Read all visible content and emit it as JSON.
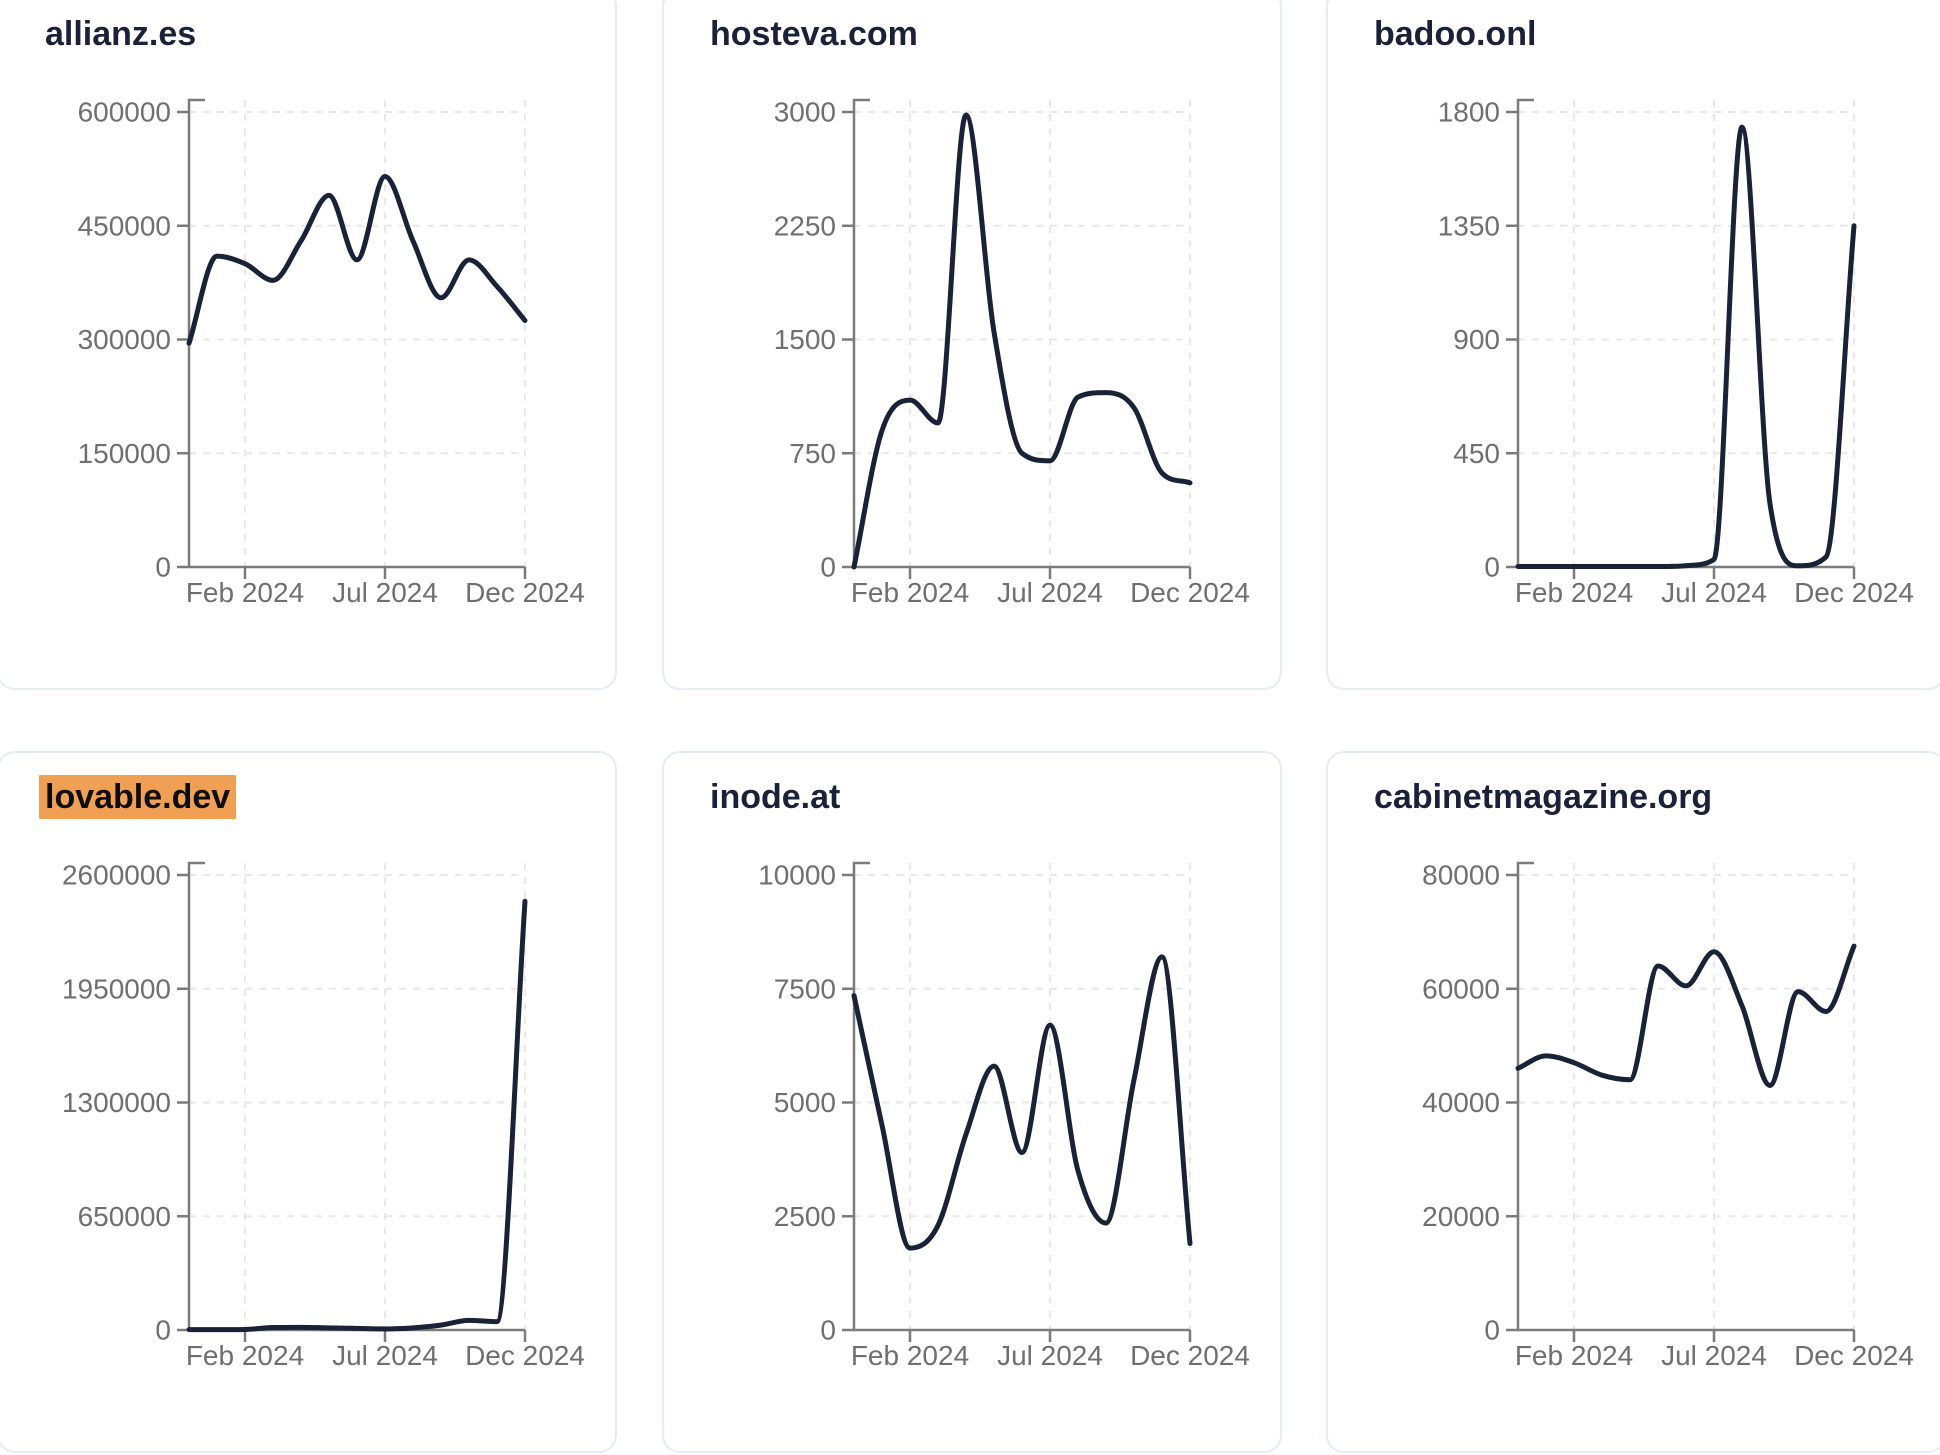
{
  "page": {
    "background": "#ffffff"
  },
  "styles": {
    "line_color": "#1a2238",
    "title_color": "#1a2139",
    "axis_color": "#7b7b7b",
    "tick_label_color": "#6f6f6f",
    "gridline_color": "#e8e8e8",
    "card_border_color": "#e7ebf3",
    "highlight_color": "#f0a055"
  },
  "x_tick_labels": [
    "Feb 2024",
    "Jul 2024",
    "Dec 2024"
  ],
  "chart_data": [
    {
      "type": "line",
      "title": "allianz.es",
      "title_highlighted": false,
      "x": [
        "Dec 2023",
        "Jan 2024",
        "Feb 2024",
        "Mar 2024",
        "Apr 2024",
        "May 2024",
        "Jun 2024",
        "Jul 2024",
        "Aug 2024",
        "Sep 2024",
        "Oct 2024",
        "Nov 2024",
        "Dec 2024"
      ],
      "x_tick_labels": [
        "Feb 2024",
        "Jul 2024",
        "Dec 2024"
      ],
      "values": [
        295000,
        410000,
        400000,
        378000,
        430000,
        490000,
        405000,
        515000,
        430000,
        355000,
        405000,
        370000,
        325000
      ],
      "ylim": [
        0,
        600000
      ],
      "y_ticks": [
        0,
        150000,
        300000,
        450000,
        600000
      ],
      "grid": true,
      "legend": "none"
    },
    {
      "type": "line",
      "title": "hosteva.com",
      "title_highlighted": false,
      "x": [
        "Dec 2023",
        "Jan 2024",
        "Feb 2024",
        "Mar 2024",
        "Apr 2024",
        "May 2024",
        "Jun 2024",
        "Jul 2024",
        "Aug 2024",
        "Sep 2024",
        "Oct 2024",
        "Nov 2024",
        "Dec 2024"
      ],
      "x_tick_labels": [
        "Feb 2024",
        "Jul 2024",
        "Dec 2024"
      ],
      "values": [
        0,
        900,
        1100,
        950,
        2980,
        1550,
        750,
        700,
        1120,
        1150,
        1050,
        620,
        555
      ],
      "ylim": [
        0,
        3000
      ],
      "y_ticks": [
        0,
        750,
        1500,
        2250,
        3000
      ],
      "grid": true,
      "legend": "none"
    },
    {
      "type": "line",
      "title": "badoo.onl",
      "title_highlighted": false,
      "x": [
        "Dec 2023",
        "Jan 2024",
        "Feb 2024",
        "Mar 2024",
        "Apr 2024",
        "May 2024",
        "Jun 2024",
        "Jul 2024",
        "Aug 2024",
        "Sep 2024",
        "Oct 2024",
        "Nov 2024",
        "Dec 2024"
      ],
      "x_tick_labels": [
        "Feb 2024",
        "Jul 2024",
        "Dec 2024"
      ],
      "values": [
        2,
        2,
        2,
        2,
        2,
        2,
        5,
        30,
        1740,
        250,
        5,
        40,
        1350
      ],
      "ylim": [
        0,
        1800
      ],
      "y_ticks": [
        0,
        450,
        900,
        1350,
        1800
      ],
      "grid": true,
      "legend": "none"
    },
    {
      "type": "line",
      "title": "lovable.dev",
      "title_highlighted": true,
      "x": [
        "Dec 2023",
        "Jan 2024",
        "Feb 2024",
        "Mar 2024",
        "Apr 2024",
        "May 2024",
        "Jun 2024",
        "Jul 2024",
        "Aug 2024",
        "Sep 2024",
        "Oct 2024",
        "Nov 2024",
        "Dec 2024"
      ],
      "x_tick_labels": [
        "Feb 2024",
        "Jul 2024",
        "Dec 2024"
      ],
      "values": [
        2000,
        2000,
        3000,
        14000,
        15000,
        12000,
        9000,
        6000,
        12000,
        28000,
        55000,
        48000,
        2450000
      ],
      "ylim": [
        0,
        2600000
      ],
      "y_ticks": [
        0,
        650000,
        1300000,
        1950000,
        2600000
      ],
      "grid": true,
      "legend": "none"
    },
    {
      "type": "line",
      "title": "inode.at",
      "title_highlighted": false,
      "x": [
        "Dec 2023",
        "Jan 2024",
        "Feb 2024",
        "Mar 2024",
        "Apr 2024",
        "May 2024",
        "Jun 2024",
        "Jul 2024",
        "Aug 2024",
        "Sep 2024",
        "Oct 2024",
        "Nov 2024",
        "Dec 2024"
      ],
      "x_tick_labels": [
        "Feb 2024",
        "Jul 2024",
        "Dec 2024"
      ],
      "values": [
        7350,
        4500,
        1800,
        2300,
        4300,
        5800,
        3900,
        6700,
        3500,
        2350,
        5500,
        8200,
        1900
      ],
      "ylim": [
        0,
        10000
      ],
      "y_ticks": [
        0,
        2500,
        5000,
        7500,
        10000
      ],
      "grid": true,
      "legend": "none"
    },
    {
      "type": "line",
      "title": "cabinetmagazine.org",
      "title_highlighted": false,
      "x": [
        "Dec 2023",
        "Jan 2024",
        "Feb 2024",
        "Mar 2024",
        "Apr 2024",
        "May 2024",
        "Jun 2024",
        "Jul 2024",
        "Aug 2024",
        "Sep 2024",
        "Oct 2024",
        "Nov 2024",
        "Dec 2024"
      ],
      "x_tick_labels": [
        "Feb 2024",
        "Jul 2024",
        "Dec 2024"
      ],
      "values": [
        46000,
        48200,
        47000,
        44800,
        44000,
        64000,
        60500,
        66500,
        57000,
        43000,
        59500,
        56000,
        67500
      ],
      "ylim": [
        0,
        80000
      ],
      "y_ticks": [
        0,
        20000,
        40000,
        60000,
        80000
      ],
      "grid": true,
      "legend": "none"
    }
  ]
}
